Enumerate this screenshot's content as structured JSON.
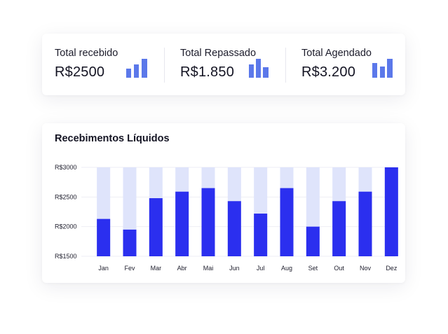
{
  "stats": [
    {
      "label": "Total recebido",
      "value": "R$2500",
      "icon": "bar-chart-icon"
    },
    {
      "label": "Total Repassado",
      "value": "R$1.850",
      "icon": "bar-chart-icon"
    },
    {
      "label": "Total Agendado",
      "value": "R$3.200",
      "icon": "bar-chart-icon"
    }
  ],
  "colors": {
    "bar": "#2b2fef",
    "track": "#dfe4fb",
    "icon": "#5b78ea",
    "grid": "#eeeeF4"
  },
  "chart_data": {
    "type": "bar",
    "title": "Recebimentos Líquidos",
    "categories": [
      "Jan",
      "Fev",
      "Mar",
      "Abr",
      "Mai",
      "Jun",
      "Jul",
      "Aug",
      "Set",
      "Out",
      "Nov",
      "Dez"
    ],
    "values": [
      2130,
      1950,
      2480,
      2590,
      2650,
      2430,
      2220,
      2650,
      2000,
      2430,
      2590,
      3000
    ],
    "ylim": [
      1500,
      3000
    ],
    "yticks": [
      {
        "value": 3000,
        "label": "R$3000"
      },
      {
        "value": 2500,
        "label": "R$2500"
      },
      {
        "value": 2000,
        "label": "R$2000"
      },
      {
        "value": 1500,
        "label": "R$1500"
      }
    ],
    "xlabel": "",
    "ylabel": "",
    "grid": true
  }
}
